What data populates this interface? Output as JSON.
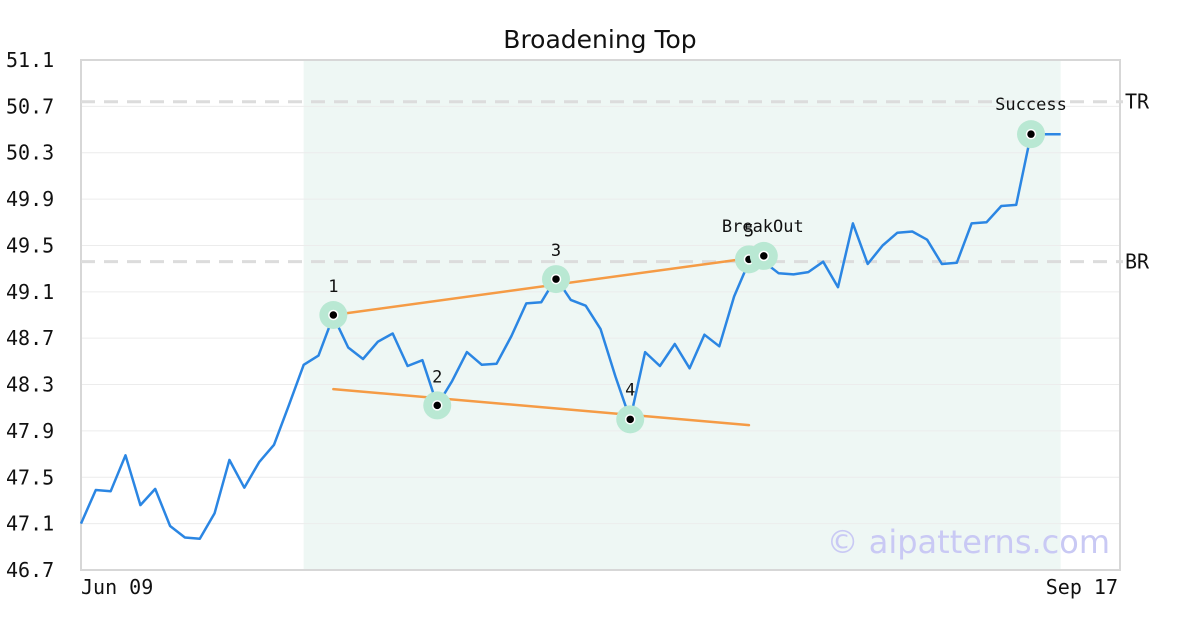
{
  "chart_data": {
    "type": "line",
    "title": "Broadening Top",
    "ylim": [
      46.7,
      51.1
    ],
    "yticks": [
      "51.1",
      "50.7",
      "50.3",
      "49.9",
      "49.5",
      "49.1",
      "48.7",
      "48.3",
      "47.9",
      "47.5",
      "47.1",
      "46.7"
    ],
    "x_tick_labels": [
      {
        "x": 0,
        "label": "Jun 09"
      },
      {
        "x": 69,
        "label": "Sep 17"
      }
    ],
    "grid": true,
    "series": [
      {
        "values": [
          47.1,
          47.39,
          47.38,
          47.69,
          47.26,
          47.4,
          47.08,
          46.98,
          46.97,
          47.19,
          47.65,
          47.41,
          47.63,
          47.78,
          48.12,
          48.47,
          48.55,
          48.89,
          48.62,
          48.52,
          48.67,
          48.74,
          48.46,
          48.51,
          48.12,
          48.33,
          48.58,
          48.47,
          48.48,
          48.72,
          49.0,
          49.01,
          49.22,
          49.03,
          48.98,
          48.78,
          48.37,
          48.0,
          48.58,
          48.46,
          48.65,
          48.44,
          48.73,
          48.63,
          49.06,
          49.36,
          49.36,
          49.26,
          49.25,
          49.27,
          49.36,
          49.14,
          49.69,
          49.34,
          49.5,
          49.61,
          49.62,
          49.55,
          49.34,
          49.35,
          49.69,
          49.7,
          49.84,
          49.85,
          50.46,
          50.46,
          50.46
        ]
      }
    ],
    "levels": [
      {
        "name": "TR",
        "y": 50.74
      },
      {
        "name": "BR",
        "y": 49.36
      }
    ],
    "pattern_window": {
      "x_start": 15,
      "x_end": 66
    },
    "trendlines": [
      {
        "from": [
          17,
          48.9
        ],
        "to": [
          45,
          49.39
        ]
      },
      {
        "from": [
          17,
          48.26
        ],
        "to": [
          45,
          47.95
        ]
      }
    ],
    "points": [
      {
        "label": "1",
        "x": 17,
        "y": 48.9
      },
      {
        "label": "2",
        "x": 24,
        "y": 48.12
      },
      {
        "label": "3",
        "x": 32,
        "y": 49.21
      },
      {
        "label": "4",
        "x": 37,
        "y": 48.0
      },
      {
        "label": "5",
        "x": 45,
        "y": 49.38
      },
      {
        "label": "BreakOut",
        "x": 46,
        "y": 49.41
      },
      {
        "label": "Success",
        "x": 64,
        "y": 50.46
      }
    ],
    "colors": {
      "line": "#2b86e3",
      "trendline": "#f59b45",
      "pattern_window": "#eef7f4",
      "marker_halo": "#b9e8d3",
      "level": "#dcdcdc"
    }
  },
  "watermark": "© aipatterns.com"
}
